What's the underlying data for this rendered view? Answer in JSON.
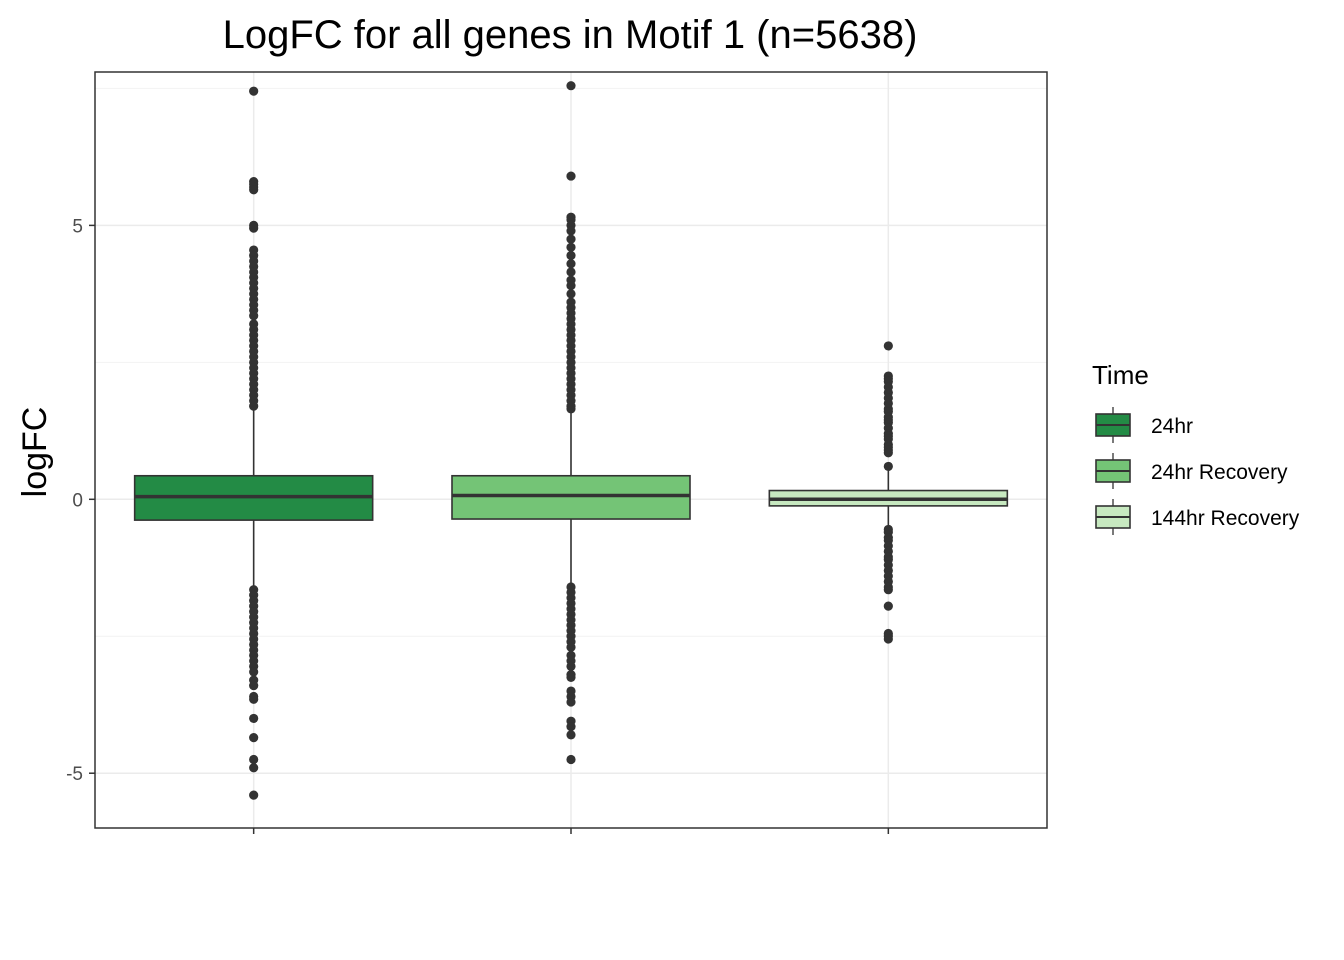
{
  "chart_data": {
    "type": "boxplot",
    "title": "LogFC for all genes in Motif 1 (n=5638)",
    "xlabel": "",
    "ylabel": "logFC",
    "ylim": [
      -6.0,
      7.8
    ],
    "yticks": [
      -5,
      0,
      5
    ],
    "ytick_labels": [
      "-5",
      "0",
      "5"
    ],
    "grid": true,
    "legend": {
      "title": "Time",
      "placement": "right"
    },
    "series": [
      {
        "name": "24hr",
        "color": "#238b45",
        "box": {
          "q1": -0.38,
          "median": 0.05,
          "q3": 0.43
        },
        "whisker": {
          "low": -1.6,
          "high": 1.65
        },
        "outliers": [
          7.45,
          5.8,
          5.75,
          5.7,
          5.65,
          5.0,
          4.95,
          4.55,
          4.45,
          4.35,
          4.25,
          4.15,
          4.05,
          3.95,
          3.85,
          3.75,
          3.65,
          3.55,
          3.45,
          3.35,
          3.2,
          3.1,
          3.0,
          2.9,
          2.8,
          2.7,
          2.6,
          2.5,
          2.4,
          2.3,
          2.2,
          2.1,
          2.0,
          1.9,
          1.8,
          1.7,
          -1.65,
          -1.75,
          -1.85,
          -1.95,
          -2.05,
          -2.15,
          -2.25,
          -2.35,
          -2.45,
          -2.55,
          -2.65,
          -2.75,
          -2.85,
          -2.95,
          -3.05,
          -3.15,
          -3.3,
          -3.4,
          -3.6,
          -3.65,
          -4.0,
          -4.35,
          -4.75,
          -4.9,
          -5.4
        ]
      },
      {
        "name": "24hr Recovery",
        "color": "#74c476",
        "box": {
          "q1": -0.36,
          "median": 0.07,
          "q3": 0.43
        },
        "whisker": {
          "low": -1.55,
          "high": 1.6
        },
        "outliers": [
          7.55,
          5.9,
          5.15,
          5.1,
          5.0,
          4.9,
          4.75,
          4.6,
          4.45,
          4.3,
          4.15,
          4.0,
          3.9,
          3.75,
          3.6,
          3.5,
          3.4,
          3.3,
          3.2,
          3.1,
          3.0,
          2.9,
          2.8,
          2.7,
          2.6,
          2.5,
          2.4,
          2.3,
          2.2,
          2.1,
          2.0,
          1.9,
          1.8,
          1.7,
          1.65,
          -1.6,
          -1.7,
          -1.8,
          -1.9,
          -2.0,
          -2.1,
          -2.2,
          -2.3,
          -2.4,
          -2.5,
          -2.6,
          -2.7,
          -2.85,
          -2.95,
          -3.05,
          -3.2,
          -3.25,
          -3.5,
          -3.6,
          -3.7,
          -4.05,
          -4.15,
          -4.3,
          -4.75
        ]
      },
      {
        "name": "144hr Recovery",
        "color": "#c7e9c0",
        "box": {
          "q1": -0.12,
          "median": 0.0,
          "q3": 0.16
        },
        "whisker": {
          "low": -0.5,
          "high": 0.55
        },
        "outliers": [
          2.8,
          2.25,
          2.2,
          2.15,
          2.05,
          1.95,
          1.85,
          1.75,
          1.65,
          1.6,
          1.5,
          1.45,
          1.4,
          1.3,
          1.2,
          1.15,
          1.1,
          1.0,
          0.95,
          0.9,
          0.85,
          0.6,
          -0.55,
          -0.6,
          -0.7,
          -0.75,
          -0.85,
          -0.95,
          -1.05,
          -1.1,
          -1.2,
          -1.3,
          -1.4,
          -1.5,
          -1.6,
          -1.65,
          -1.95,
          -2.45,
          -2.5,
          -2.55
        ]
      }
    ]
  }
}
